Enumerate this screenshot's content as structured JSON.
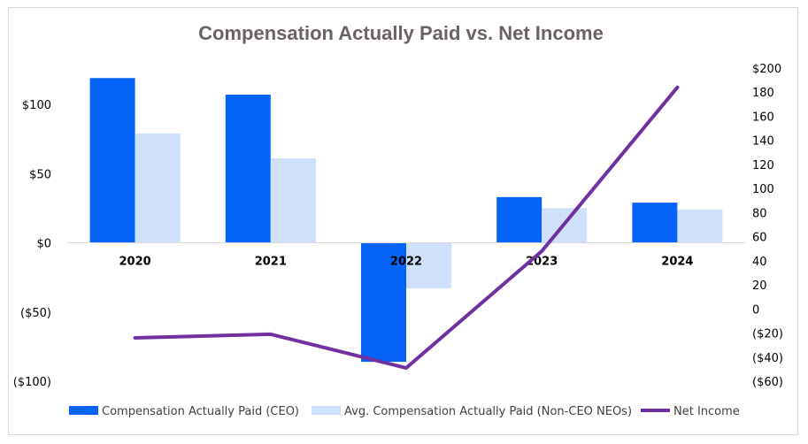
{
  "chart_data": {
    "type": "bar",
    "title": "Compensation Actually Paid vs. Net Income",
    "categories": [
      "2020",
      "2021",
      "2022",
      "2023",
      "2024"
    ],
    "series": [
      {
        "name": "Compensation Actually Paid (CEO)",
        "kind": "bar",
        "axis": "left",
        "color": "#0563f8",
        "values": [
          119,
          107,
          -86,
          33,
          29
        ]
      },
      {
        "name": "Avg. Compensation Actually Paid (Non-CEO NEOs)",
        "kind": "bar",
        "axis": "left",
        "color": "#cfe0fb",
        "values": [
          79,
          61,
          -33,
          25,
          24
        ]
      },
      {
        "name": "Net Income",
        "kind": "line",
        "axis": "right",
        "color": "#7030a0",
        "values": [
          -24,
          -21,
          -49,
          48,
          184
        ]
      }
    ],
    "left_axis": {
      "ylim": [
        -100,
        100
      ],
      "ticks": [
        100,
        50,
        0,
        -50,
        -100
      ],
      "tick_labels": [
        "$100",
        "$50",
        "$0",
        "($50)",
        "($100)"
      ]
    },
    "right_axis": {
      "ylim": [
        -60,
        200
      ],
      "ticks": [
        200,
        180,
        160,
        140,
        120,
        100,
        80,
        60,
        40,
        20,
        0,
        -20,
        -40,
        -60
      ],
      "tick_labels": [
        "$200",
        "180",
        "160",
        "140",
        "120",
        "100",
        "80",
        "60",
        "40",
        "20",
        "0",
        "($20)",
        "($40)",
        "($60)"
      ]
    },
    "legend_position": "bottom",
    "grid": false
  }
}
